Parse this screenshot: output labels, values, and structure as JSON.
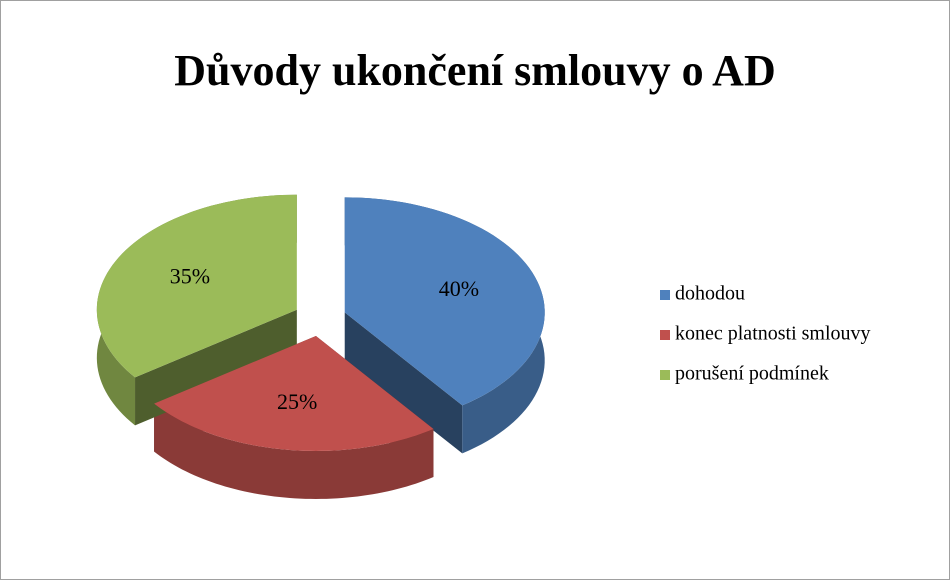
{
  "chart_data": {
    "type": "pie",
    "title": "Důvody ukončení smlouvy o AD",
    "categories": [
      "dohodou",
      "konec platnosti smlouvy",
      "porušení podmínek"
    ],
    "values": [
      40,
      25,
      35
    ],
    "value_labels": [
      "40%",
      "25%",
      "35%"
    ],
    "colors": [
      "#4f81bd",
      "#c0504d",
      "#9bbb59"
    ],
    "legend": "right"
  }
}
